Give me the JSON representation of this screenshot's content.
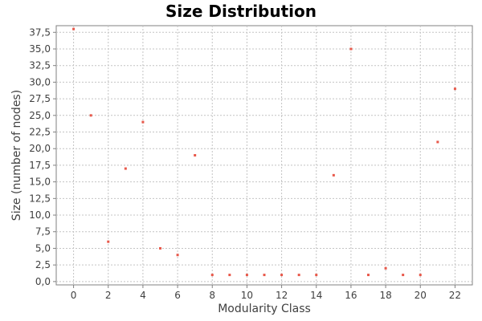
{
  "chart_data": {
    "type": "scatter",
    "title": "Size Distribution",
    "xlabel": "Modularity Class",
    "ylabel": "Size (number of nodes)",
    "xlim": [
      -1,
      23
    ],
    "ylim": [
      -0.5,
      38.5
    ],
    "x_ticks": [
      0,
      2,
      4,
      6,
      8,
      10,
      12,
      14,
      16,
      18,
      20,
      22
    ],
    "x_tick_labels": [
      "0",
      "2",
      "4",
      "6",
      "8",
      "10",
      "12",
      "14",
      "16",
      "18",
      "20",
      "22"
    ],
    "y_ticks": [
      0,
      2.5,
      5,
      7.5,
      10,
      12.5,
      15,
      17.5,
      20,
      22.5,
      25,
      27.5,
      30,
      32.5,
      35,
      37.5
    ],
    "y_tick_labels": [
      "0,0",
      "2,5",
      "5,0",
      "7,5",
      "10,0",
      "12,5",
      "15,0",
      "17,5",
      "20,0",
      "22,5",
      "25,0",
      "27,5",
      "30,0",
      "32,5",
      "35,0",
      "37,5"
    ],
    "grid": true,
    "legend": "none",
    "point_color": "#e8584a",
    "points": [
      {
        "x": 0,
        "y": 38
      },
      {
        "x": 1,
        "y": 25
      },
      {
        "x": 2,
        "y": 6
      },
      {
        "x": 3,
        "y": 17
      },
      {
        "x": 4,
        "y": 24
      },
      {
        "x": 5,
        "y": 5
      },
      {
        "x": 6,
        "y": 4
      },
      {
        "x": 7,
        "y": 19
      },
      {
        "x": 8,
        "y": 1
      },
      {
        "x": 9,
        "y": 1
      },
      {
        "x": 10,
        "y": 1
      },
      {
        "x": 11,
        "y": 1
      },
      {
        "x": 12,
        "y": 1
      },
      {
        "x": 13,
        "y": 1
      },
      {
        "x": 14,
        "y": 1
      },
      {
        "x": 15,
        "y": 16
      },
      {
        "x": 16,
        "y": 35
      },
      {
        "x": 17,
        "y": 1
      },
      {
        "x": 18,
        "y": 2
      },
      {
        "x": 19,
        "y": 1
      },
      {
        "x": 20,
        "y": 1
      },
      {
        "x": 21,
        "y": 21
      },
      {
        "x": 22,
        "y": 29
      }
    ]
  }
}
